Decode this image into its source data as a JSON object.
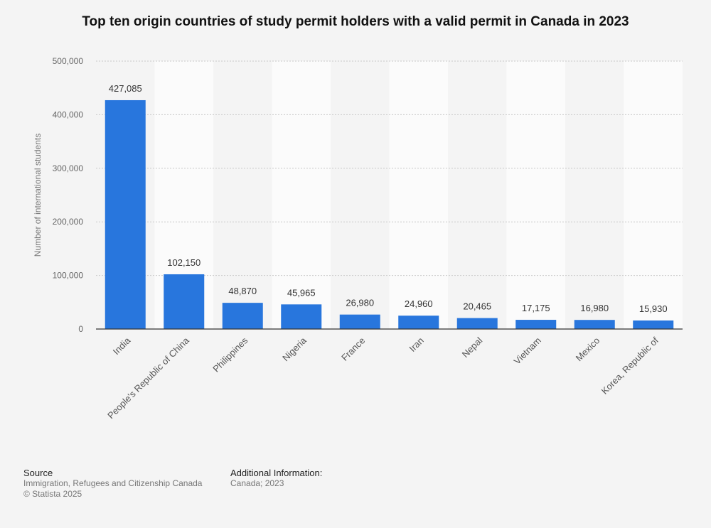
{
  "title": "Top ten origin countries of study permit holders with a valid permit in Canada in 2023",
  "chart_data": {
    "type": "bar",
    "title": "Top ten origin countries of study permit holders with a valid permit in Canada in 2023",
    "categories": [
      "India",
      "People's Republic of China",
      "Philippines",
      "Nigeria",
      "France",
      "Iran",
      "Nepal",
      "Vietnam",
      "Mexico",
      "Korea, Republic of"
    ],
    "values": [
      427085,
      102150,
      48870,
      45965,
      26980,
      24960,
      20465,
      17175,
      16980,
      15930
    ],
    "value_labels": [
      "427,085",
      "102,150",
      "48,870",
      "45,965",
      "26,980",
      "24,960",
      "20,465",
      "17,175",
      "16,980",
      "15,930"
    ],
    "xlabel": "",
    "ylabel": "Number of international students",
    "ylim": [
      0,
      500000
    ],
    "yticks": [
      0,
      100000,
      200000,
      300000,
      400000,
      500000
    ],
    "ytick_labels": [
      "0",
      "100,000",
      "200,000",
      "300,000",
      "400,000",
      "500,000"
    ],
    "grid": true,
    "bar_color": "#2876dd"
  },
  "footer": {
    "source_heading": "Source",
    "source_text": "Immigration, Refugees and Citizenship Canada",
    "copyright": "© Statista 2025",
    "info_heading": "Additional Information:",
    "info_text": "Canada; 2023"
  }
}
